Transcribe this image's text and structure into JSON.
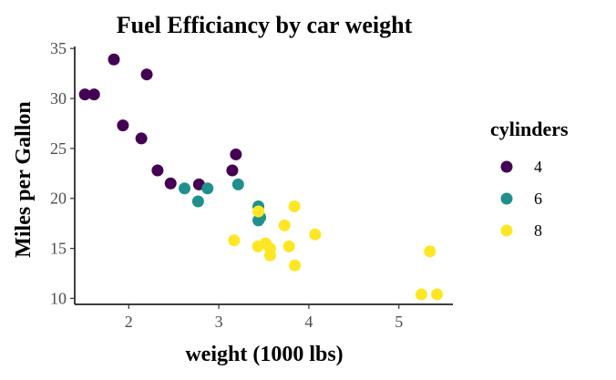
{
  "chart_data": {
    "type": "scatter",
    "title": "Fuel Efficiancy by car weight",
    "xlabel": "weight (1000 lbs)",
    "ylabel": "Miles per Gallon",
    "xlim": [
      1.4,
      5.6
    ],
    "ylim": [
      9.4,
      35.2
    ],
    "xticks": [
      2,
      3,
      4,
      5
    ],
    "yticks": [
      10,
      15,
      20,
      25,
      30,
      35
    ],
    "grid": false,
    "legend": {
      "title": "cylinders",
      "position": "right"
    },
    "series": [
      {
        "name": "4",
        "color": "#440154",
        "points": [
          [
            1.835,
            33.9
          ],
          [
            2.2,
            32.4
          ],
          [
            1.513,
            30.4
          ],
          [
            1.615,
            30.4
          ],
          [
            1.935,
            27.3
          ],
          [
            2.14,
            26.0
          ],
          [
            3.19,
            24.4
          ],
          [
            2.32,
            22.8
          ],
          [
            3.15,
            22.8
          ],
          [
            2.78,
            21.4
          ],
          [
            2.465,
            21.5
          ]
        ]
      },
      {
        "name": "6",
        "color": "#21908C",
        "points": [
          [
            2.62,
            21.0
          ],
          [
            2.875,
            21.0
          ],
          [
            3.215,
            21.4
          ],
          [
            2.77,
            19.7
          ],
          [
            3.44,
            19.2
          ],
          [
            3.46,
            18.1
          ],
          [
            3.44,
            17.8
          ]
        ]
      },
      {
        "name": "8",
        "color": "#FDE725",
        "points": [
          [
            3.84,
            19.2
          ],
          [
            3.73,
            17.3
          ],
          [
            3.44,
            18.7
          ],
          [
            4.07,
            16.4
          ],
          [
            3.52,
            15.5
          ],
          [
            3.435,
            15.2
          ],
          [
            3.78,
            15.2
          ],
          [
            3.57,
            15.0
          ],
          [
            3.57,
            14.3
          ],
          [
            3.17,
            15.8
          ],
          [
            5.345,
            14.7
          ],
          [
            3.845,
            13.3
          ],
          [
            5.25,
            10.4
          ],
          [
            5.424,
            10.4
          ]
        ]
      }
    ]
  }
}
